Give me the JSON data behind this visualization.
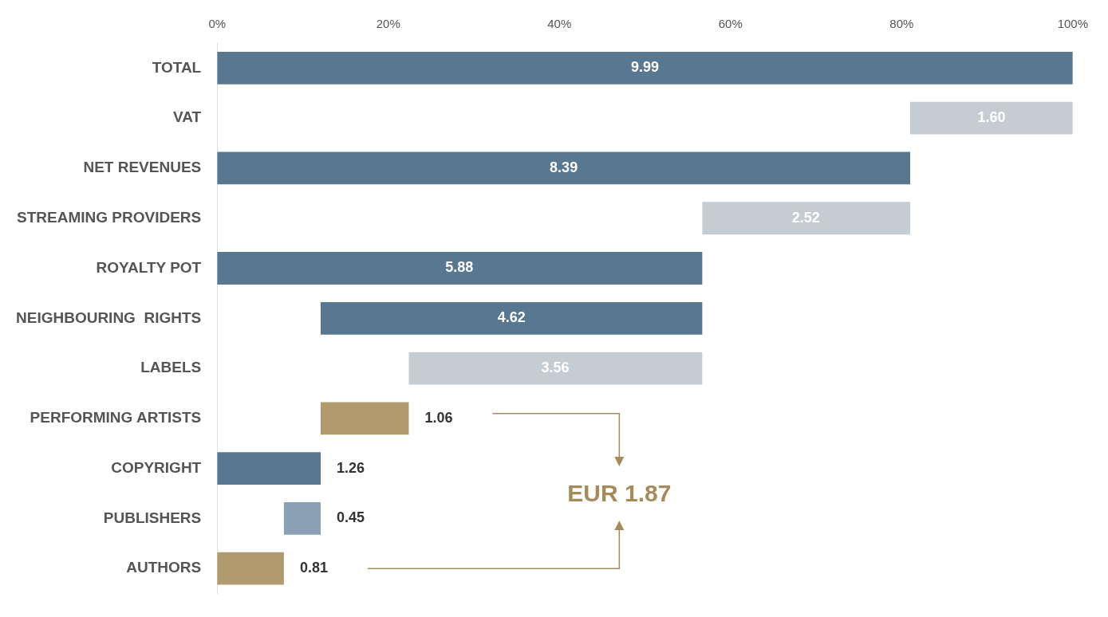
{
  "chart_data": {
    "type": "bar",
    "orientation": "horizontal",
    "categories": [
      "TOTAL",
      "VAT",
      "NET REVENUES",
      "STREAMING PROVIDERS",
      "ROYALTY POT",
      "NEIGHBOURING  RIGHTS",
      "LABELS",
      "PERFORMING ARTISTS",
      "COPYRIGHT",
      "PUBLISHERS",
      "AUTHORS"
    ],
    "values": [
      100,
      19,
      81,
      24.3,
      56.7,
      44.6,
      34.3,
      10.3,
      12.1,
      4.3,
      7.8
    ],
    "base": [
      0,
      81,
      0,
      56.7,
      0,
      12.1,
      22.4,
      12.1,
      0,
      7.8,
      0
    ],
    "colors": [
      "#587791",
      "#c5cdd2",
      "#587791",
      "#c5cdd2",
      "#587791",
      "#587791",
      "#c5cdd2",
      "#b09a6e",
      "#587791",
      "#8aa0b5",
      "#b09a6e"
    ],
    "xlim": [
      0,
      100
    ],
    "xticks": [
      {
        "value": 0,
        "label": "0%"
      },
      {
        "value": 20,
        "label": "20%"
      },
      {
        "value": 40,
        "label": "40%"
      },
      {
        "value": 60,
        "label": "60%"
      },
      {
        "value": 80,
        "label": "80%"
      },
      {
        "value": 100,
        "label": "100%"
      }
    ],
    "annotations": [
      {
        "text": "9.99",
        "x": 50,
        "y": "TOTAL"
      },
      {
        "text": "1.60",
        "x": 90.5,
        "y": "VAT"
      },
      {
        "text": "8.39",
        "x": 40.5,
        "y": "NET REVENUES"
      },
      {
        "text": "2.52",
        "x": 68.8,
        "y": "STREAMING PROVIDERS"
      },
      {
        "text": "5.88",
        "x": 28.3,
        "y": "ROYALTY POT"
      },
      {
        "text": "4.62",
        "x": 34.4,
        "y": "NEIGHBOURING  RIGHTS"
      },
      {
        "text": "3.56",
        "x": 39.5,
        "y": "LABELS"
      },
      {
        "text": "1.06",
        "x": 22.4,
        "y": "PERFORMING ARTISTS"
      },
      {
        "text": "1.26",
        "x": 12.1,
        "y": "COPYRIGHT"
      },
      {
        "text": "0.45",
        "x": 12.1,
        "y": "PUBLISHERS"
      },
      {
        "text": "0.81",
        "x": 7.8,
        "y": "AUTHORS"
      },
      "EUR 1.87"
    ]
  }
}
